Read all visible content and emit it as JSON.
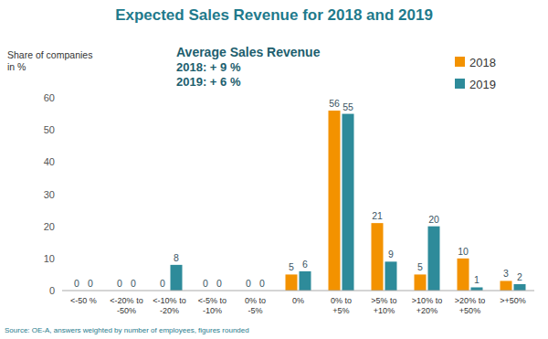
{
  "chart_data": {
    "type": "bar",
    "title": "Expected Sales Revenue for 2018 and 2019",
    "y_label": "Share of companies in %",
    "annotations": [
      "Average Sales Revenue",
      "2018: + 9 %",
      "2019: + 6 %"
    ],
    "source": "Source: OE-A, answers weighted by number of employees, figures rounded",
    "categories": [
      "<-50 %",
      "<-20% to -50%",
      "<-10% to -20%",
      "<-5% to -10%",
      "0% to -5%",
      "0%",
      "0% to +5%",
      ">5% to +10%",
      ">10% to +20%",
      ">20% to +50%",
      ">+50%"
    ],
    "series": [
      {
        "name": "2018",
        "color": "#f39200",
        "values": [
          0,
          0,
          0,
          0,
          0,
          5,
          56,
          21,
          5,
          10,
          3
        ]
      },
      {
        "name": "2019",
        "color": "#2e8b9a",
        "values": [
          0,
          0,
          8,
          0,
          0,
          6,
          55,
          9,
          20,
          1,
          2
        ]
      }
    ],
    "ylim": [
      0,
      60
    ],
    "yticks": [
      0,
      10,
      20,
      30,
      40,
      50,
      60
    ],
    "grid": false,
    "legend": "top-right",
    "data_labels": true
  }
}
